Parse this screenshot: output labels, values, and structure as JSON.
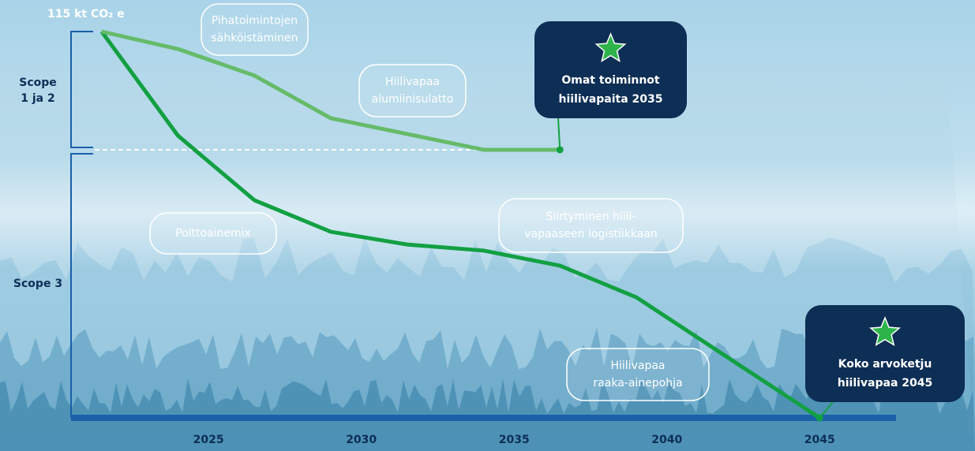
{
  "chart_data": {
    "type": "line",
    "title": "115 kt CO₂ e",
    "x": [
      2021.5,
      2024,
      2026.5,
      2029,
      2031.5,
      2034,
      2036.5,
      2039,
      2045
    ],
    "xlim": [
      2020.5,
      2047.5
    ],
    "xticks": [
      2025,
      2030,
      2035,
      2040,
      2045
    ],
    "ylim": [
      0,
      115
    ],
    "series": [
      {
        "color": "#13a043",
        "values": [
          115,
          84,
          64.8,
          55.4,
          51.6,
          49.8,
          45.3,
          35.9,
          0
        ]
      },
      {
        "color": "#66bb6a",
        "values": [
          115,
          109.8,
          101.9,
          89.2,
          84.5,
          79.8,
          79.8,
          null,
          null
        ]
      }
    ],
    "scope_boundary": 79.8,
    "scopes": [
      {
        "lines": [
          "Scope",
          "1 ja 2"
        ]
      },
      {
        "lines": [
          "Scope 3"
        ]
      }
    ],
    "annotations": [
      {
        "lines": [
          "Pihatoimintojen",
          "sähköistäminen"
        ]
      },
      {
        "lines": [
          "Hiilivapaa",
          "alumiinisulatto"
        ]
      },
      {
        "lines": [
          "Polttoainemix"
        ]
      },
      {
        "lines": [
          "Siirtyminen hiili-",
          "vapaaseen logistiikkaan"
        ]
      },
      {
        "lines": [
          "Hiilivapaa",
          "raaka-ainepohja"
        ]
      }
    ],
    "callouts": [
      {
        "lines": [
          "Omat toiminnot",
          "hiilivapaita 2035"
        ]
      },
      {
        "lines": [
          "Koko arvoketju",
          "hiilivapaa 2045"
        ]
      }
    ]
  }
}
